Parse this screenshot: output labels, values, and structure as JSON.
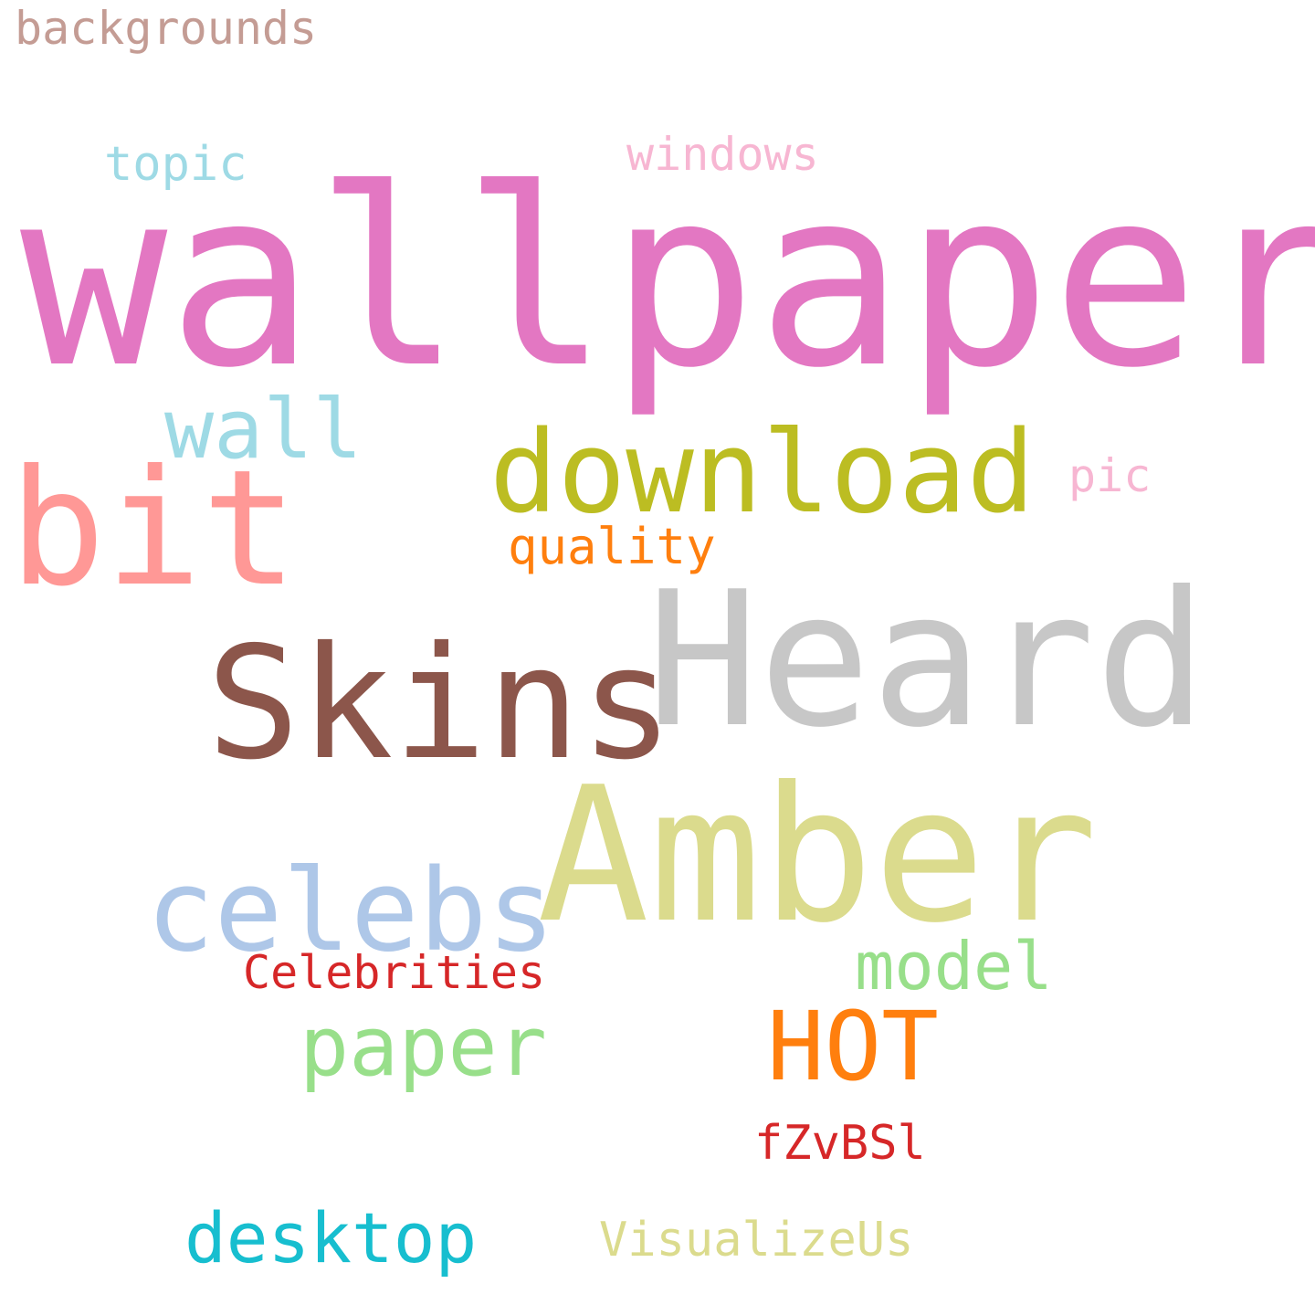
{
  "words": [
    {
      "key": "wallpaper",
      "text": "wallpaper",
      "color": "#e377c2"
    },
    {
      "key": "heard",
      "text": "Heard",
      "color": "#c7c7c7"
    },
    {
      "key": "amber",
      "text": "Amber",
      "color": "#dbdb8d"
    },
    {
      "key": "skins",
      "text": "Skins",
      "color": "#8c564b"
    },
    {
      "key": "bit",
      "text": "bit",
      "color": "#ff9896"
    },
    {
      "key": "download",
      "text": "download",
      "color": "#bcbd22"
    },
    {
      "key": "celebs",
      "text": "celebs",
      "color": "#aec7e8"
    },
    {
      "key": "hot",
      "text": "HOT",
      "color": "#ff7f0e"
    },
    {
      "key": "paper",
      "text": "paper",
      "color": "#98df8a"
    },
    {
      "key": "wall",
      "text": "wall",
      "color": "#9edae5"
    },
    {
      "key": "desktop",
      "text": "desktop",
      "color": "#17becf"
    },
    {
      "key": "model",
      "text": "model",
      "color": "#98df8a"
    },
    {
      "key": "celebrities",
      "text": "Celebrities",
      "color": "#d62728"
    },
    {
      "key": "quality",
      "text": "quality",
      "color": "#ff7f0e"
    },
    {
      "key": "fzvbsl",
      "text": "fZvBSl",
      "color": "#d62728"
    },
    {
      "key": "visualizeus",
      "text": "VisualizeUs",
      "color": "#dbdb8d"
    },
    {
      "key": "windows",
      "text": "windows",
      "color": "#f7b6d2"
    },
    {
      "key": "topic",
      "text": "topic",
      "color": "#9edae5"
    },
    {
      "key": "pic",
      "text": "pic",
      "color": "#f7b6d2"
    },
    {
      "key": "backgrounds",
      "text": "backgrounds",
      "color": "#c49c94"
    }
  ]
}
